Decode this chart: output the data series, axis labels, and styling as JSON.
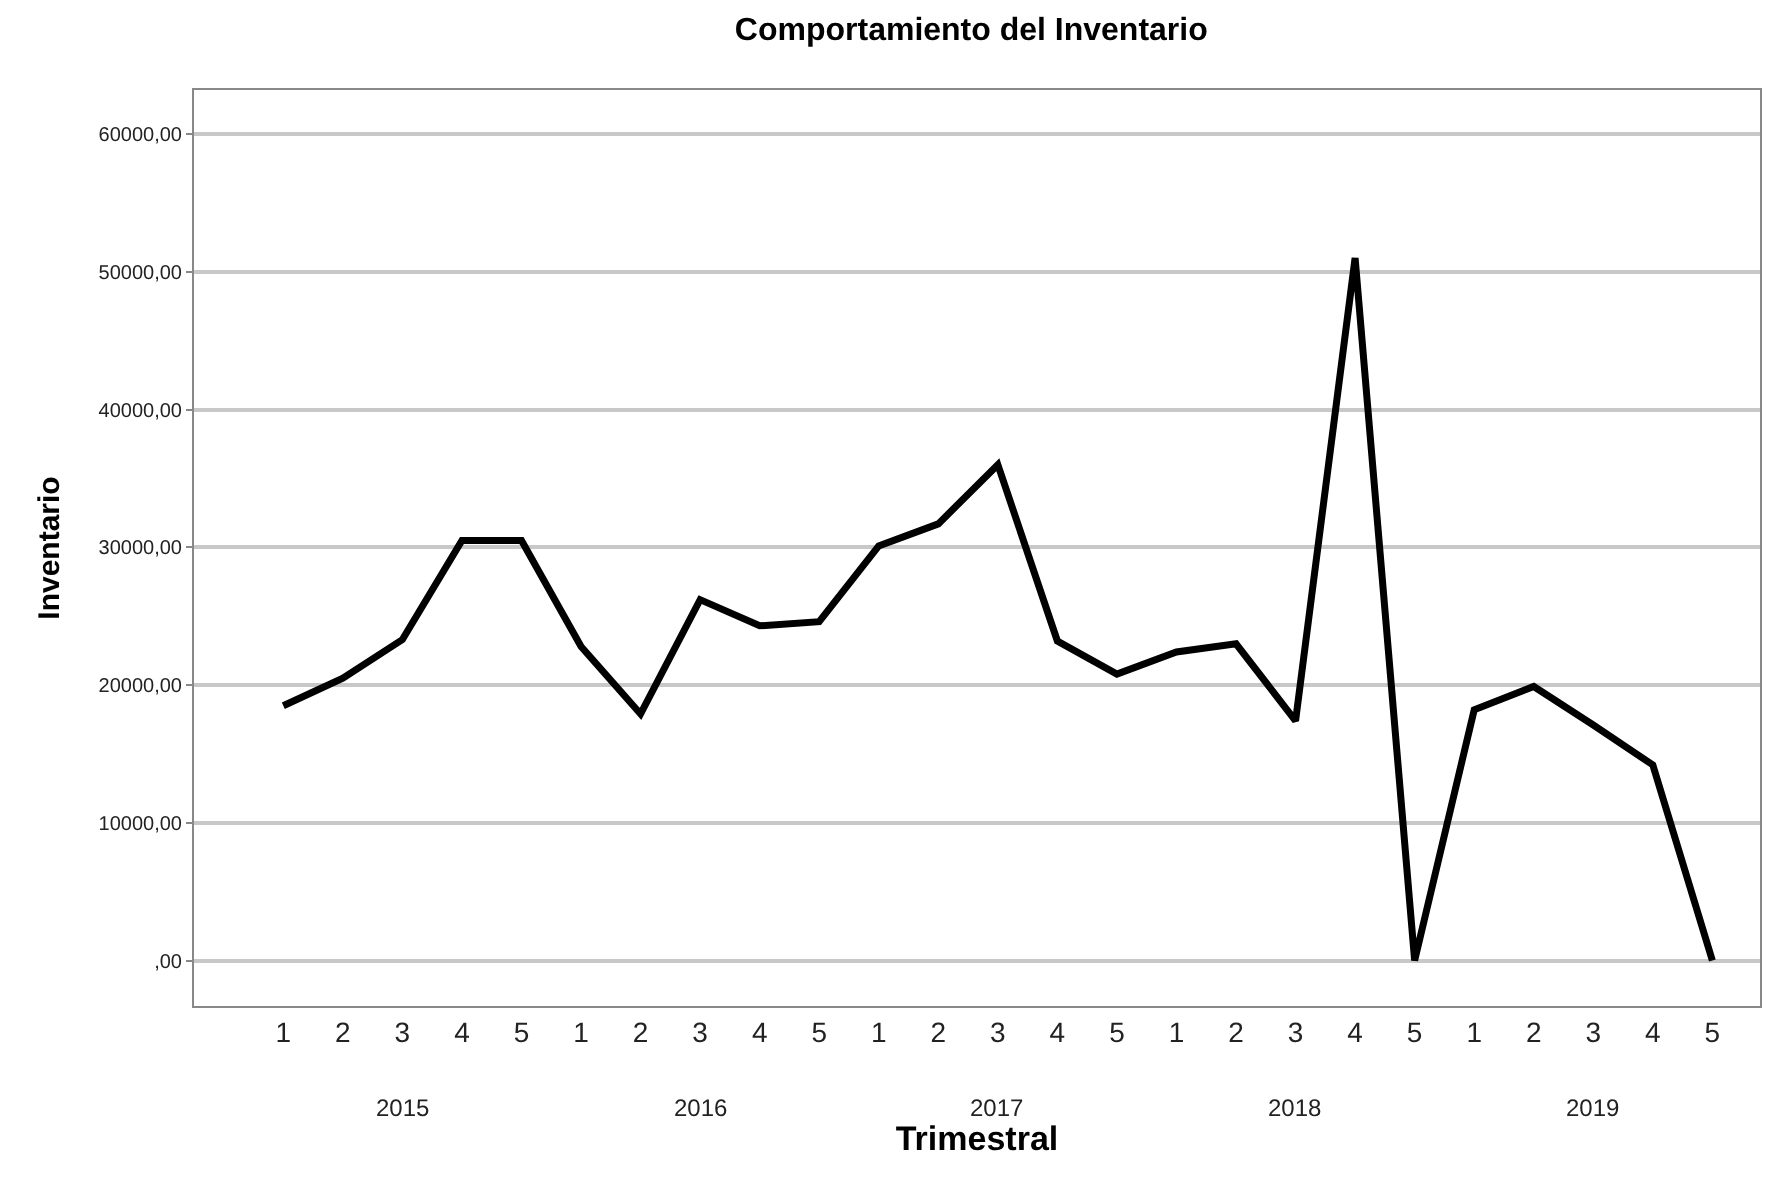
{
  "chart_data": {
    "type": "line",
    "title": "Comportamiento del Inventario",
    "xlabel": "Trimestral",
    "ylabel": "Inventario",
    "categories": [
      "1",
      "2",
      "3",
      "4",
      "5",
      "1",
      "2",
      "3",
      "4",
      "5",
      "1",
      "2",
      "3",
      "4",
      "5",
      "1",
      "2",
      "3",
      "4",
      "5",
      "1",
      "2",
      "3",
      "4",
      "5"
    ],
    "annotations": [
      "2015",
      "2016",
      "2017",
      "2018",
      "2019"
    ],
    "series": [
      {
        "color": "#000000",
        "values": [
          18500,
          20500,
          23300,
          30500,
          30500,
          22800,
          17900,
          26200,
          24300,
          24600,
          30100,
          31700,
          36000,
          23200,
          20800,
          22400,
          23000,
          17400,
          51000,
          0,
          18200,
          19900,
          17100,
          14200,
          0
        ]
      }
    ],
    "ylim": [
      -3300,
      63200
    ],
    "yticks": [
      {
        "value": 0,
        "label": ",00"
      },
      {
        "value": 10000,
        "label": "10000,00"
      },
      {
        "value": 20000,
        "label": "20000,00"
      },
      {
        "value": 30000,
        "label": "30000,00"
      },
      {
        "value": 40000,
        "label": "40000,00"
      },
      {
        "value": 50000,
        "label": "50000,00"
      },
      {
        "value": 60000,
        "label": "60000,00"
      }
    ],
    "grid": "y",
    "legend": false,
    "marker": "none",
    "line_style": "solid"
  }
}
